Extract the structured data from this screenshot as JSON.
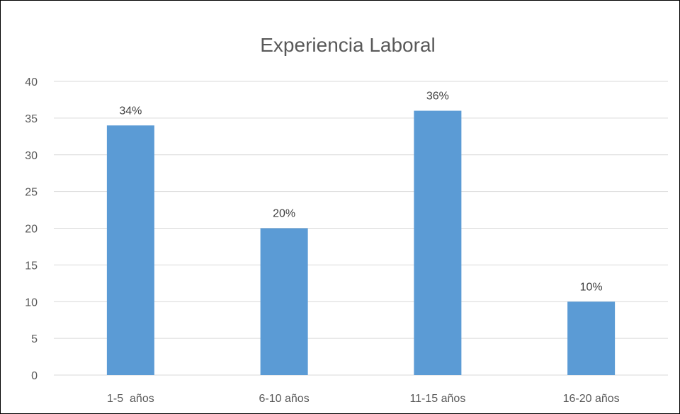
{
  "chart_data": {
    "type": "bar",
    "title": "Experiencia Laboral",
    "xlabel": "",
    "ylabel": "",
    "categories": [
      "1-5  años",
      "6-10 años",
      "11-15 años",
      "16-20 años"
    ],
    "values": [
      34,
      20,
      36,
      10
    ],
    "data_labels": [
      "34%",
      "20%",
      "36%",
      "10%"
    ],
    "ylim": [
      0,
      40
    ],
    "yticks": [
      0,
      5,
      10,
      15,
      20,
      25,
      30,
      35,
      40
    ],
    "grid": true,
    "legend": "none",
    "bar_color": "#5b9bd5"
  }
}
